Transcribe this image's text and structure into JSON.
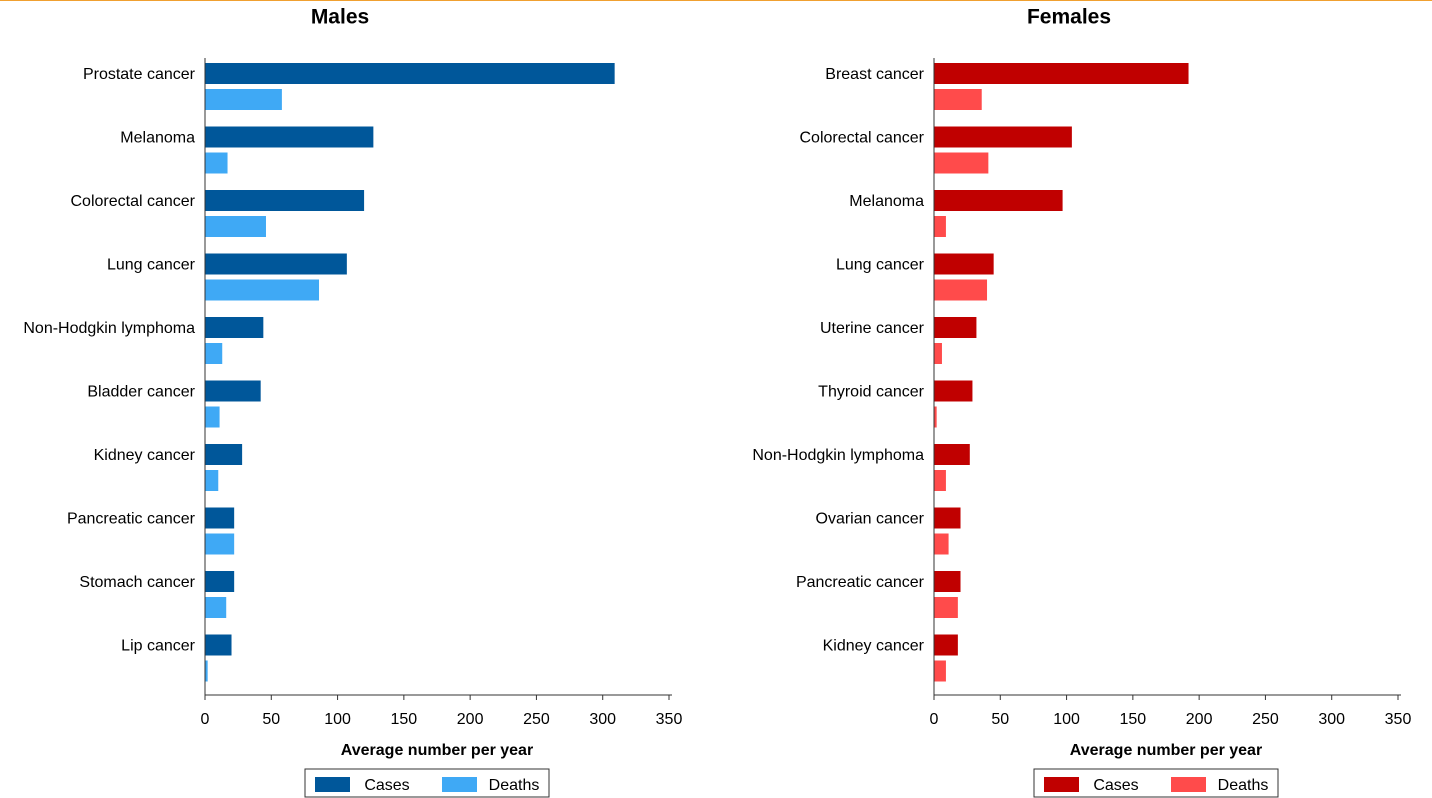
{
  "chart_data": [
    {
      "type": "bar",
      "orientation": "horizontal",
      "title": "Males",
      "x_label": "Average number per year",
      "categories": [
        "Prostate cancer",
        "Melanoma",
        "Colorectal cancer",
        "Lung cancer",
        "Non-Hodgkin lymphoma",
        "Bladder cancer",
        "Kidney cancer",
        "Pancreatic cancer",
        "Stomach cancer",
        "Lip cancer"
      ],
      "series": [
        {
          "name": "Cases",
          "color": "#00579a",
          "values": [
            309,
            127,
            120,
            107,
            44,
            42,
            28,
            22,
            22,
            20
          ]
        },
        {
          "name": "Deaths",
          "color": "#3fa9f5",
          "values": [
            58,
            17,
            46,
            86,
            13,
            11,
            10,
            22,
            16,
            2
          ]
        }
      ],
      "xlim": [
        0,
        350
      ],
      "xticks": [
        0,
        50,
        100,
        150,
        200,
        250,
        300,
        350
      ],
      "grid": false,
      "legend": "bottom"
    },
    {
      "type": "bar",
      "orientation": "horizontal",
      "title": "Females",
      "x_label": "Average number per year",
      "categories": [
        "Breast cancer",
        "Colorectal cancer",
        "Melanoma",
        "Lung cancer",
        "Uterine cancer",
        "Thyroid cancer",
        "Non-Hodgkin lymphoma",
        "Ovarian cancer",
        "Pancreatic cancer",
        "Kidney cancer"
      ],
      "series": [
        {
          "name": "Cases",
          "color": "#c00000",
          "values": [
            192,
            104,
            97,
            45,
            32,
            29,
            27,
            20,
            20,
            18
          ]
        },
        {
          "name": "Deaths",
          "color": "#ff4b4b",
          "values": [
            36,
            41,
            9,
            40,
            6,
            2,
            9,
            11,
            18,
            9
          ]
        }
      ],
      "xlim": [
        0,
        350
      ],
      "xticks": [
        0,
        50,
        100,
        150,
        200,
        250,
        300,
        350
      ],
      "grid": false,
      "legend": "bottom"
    }
  ]
}
